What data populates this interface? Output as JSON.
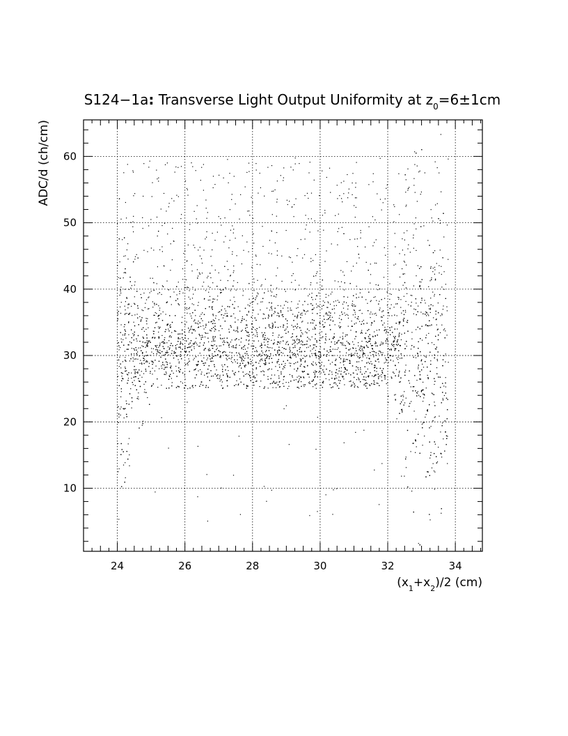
{
  "chart_data": {
    "type": "scatter",
    "title_main": "S124−1a",
    "title_colon": ":",
    "title_rest": " Transverse Light Output Uniformity at z",
    "title_sub": "0",
    "title_end": "=6±1cm",
    "ylabel": "ADC/d (ch/cm)",
    "xlabel_parts": {
      "open": "(x",
      "sub1": "1",
      "plus": "+x",
      "sub2": "2",
      "close": ")/2 (cm)"
    },
    "xlim": [
      23,
      34.8
    ],
    "ylim": [
      0.5,
      65.5
    ],
    "x_major_ticks": [
      24,
      26,
      28,
      30,
      32,
      34
    ],
    "x_tick_labels": [
      "24",
      "26",
      "28",
      "30",
      "32",
      "34"
    ],
    "y_major_ticks": [
      10,
      20,
      30,
      40,
      50,
      60
    ],
    "y_tick_labels": [
      "10",
      "20",
      "30",
      "40",
      "50",
      "60"
    ],
    "x_minor_step": 0.25,
    "y_minor_step": 2,
    "grid": true,
    "marker_color": "#000000",
    "distribution": {
      "x_range": [
        24.0,
        33.8
      ],
      "core_y_center": 31,
      "core_y_spread": 3.5,
      "n_core": 5200,
      "n_halo": 700,
      "edge_x_low": 24.4,
      "edge_x_high": 32.4,
      "outlier_y_range": [
        5,
        60
      ],
      "seed": 12345
    }
  }
}
